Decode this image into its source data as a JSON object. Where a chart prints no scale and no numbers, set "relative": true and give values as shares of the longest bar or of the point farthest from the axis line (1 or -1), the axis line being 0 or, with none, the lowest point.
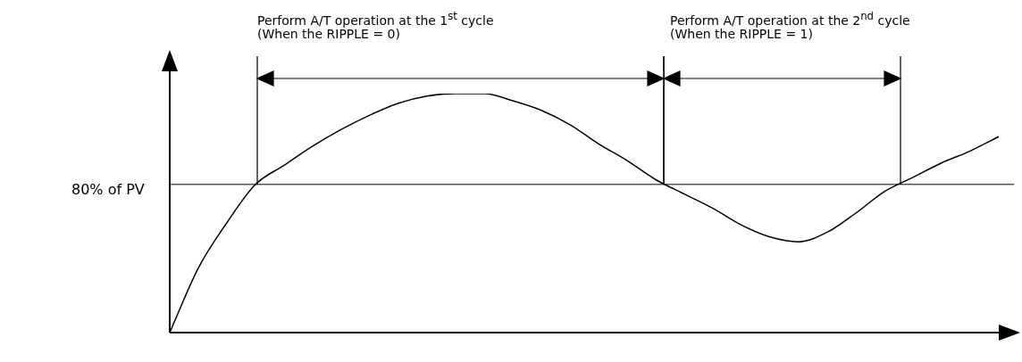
{
  "chart_data": {
    "type": "line",
    "relative": true,
    "categories": [
      null,
      null,
      null,
      null,
      null,
      null,
      null,
      null,
      null,
      null,
      null,
      null,
      null,
      null,
      null,
      null,
      null,
      null,
      null,
      null,
      null,
      null,
      null,
      null,
      null,
      null,
      null,
      null,
      null,
      null
    ],
    "series": [
      {
        "color": "#000000",
        "values": [
          0,
          0.27,
          0.46,
          0.62,
          0.7,
          0.78,
          0.85,
          0.91,
          0.96,
          0.99,
          1,
          1,
          0.97,
          0.93,
          0.87,
          0.79,
          0.72,
          0.64,
          0.58,
          0.52,
          0.45,
          0.4,
          0.38,
          0.42,
          0.5,
          0.59,
          0.65,
          0.71,
          0.76,
          0.82
        ]
      }
    ],
    "ref_lines": [
      {
        "axis": "y",
        "value": 0.62,
        "label": "80% of PV",
        "color": "#000000"
      }
    ],
    "annotations": [
      "Perform A/T operation at the 1$^{st}$ cycle",
      "(When the RIPPLE = 0)",
      "Perform A/T operation at the 2$^{nd}$ cycle",
      "(When the RIPPLE = 1)"
    ],
    "marker": "none",
    "legend": false
  }
}
